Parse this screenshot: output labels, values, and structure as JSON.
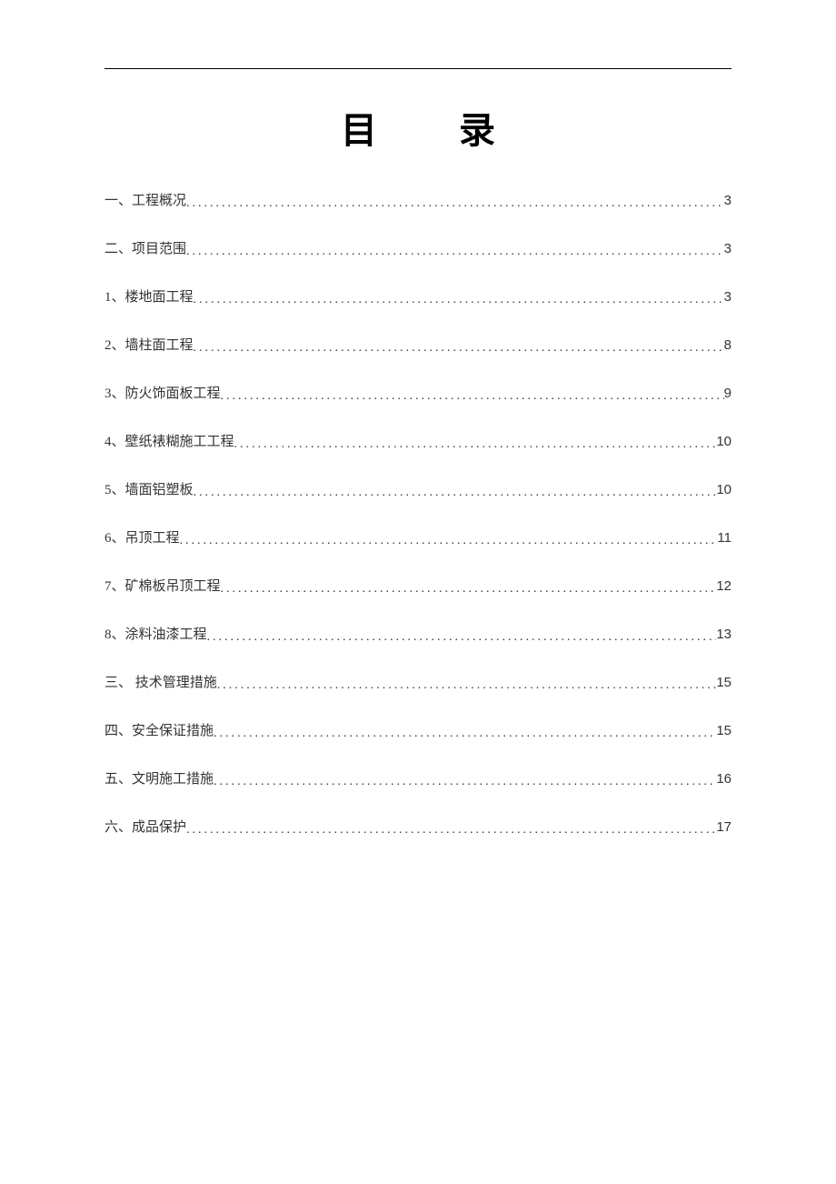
{
  "title": "目 录",
  "toc": {
    "items": [
      {
        "label": "一、工程概况",
        "page": "3"
      },
      {
        "label": "二、项目范围",
        "page": "3"
      },
      {
        "label": "1、楼地面工程",
        "page": "3"
      },
      {
        "label": "2、墙柱面工程",
        "page": "8"
      },
      {
        "label": "3、防火饰面板工程",
        "page": "9"
      },
      {
        "label": "4、壁纸裱糊施工工程",
        "page": "10"
      },
      {
        "label": "5、墙面铝塑板",
        "page": "10"
      },
      {
        "label": "6、吊顶工程",
        "page": "11"
      },
      {
        "label": "7、矿棉板吊顶工程",
        "page": "12"
      },
      {
        "label": "8、涂料油漆工程",
        "page": "13"
      },
      {
        "label": "三、 技术管理措施",
        "page": "15"
      },
      {
        "label": "四、安全保证措施",
        "page": "15"
      },
      {
        "label": "五、文明施工措施",
        "page": "16"
      },
      {
        "label": "六、成品保护",
        "page": "17"
      }
    ]
  }
}
